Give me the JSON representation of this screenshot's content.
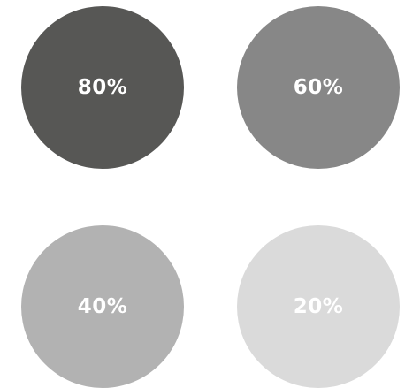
{
  "swatches": [
    {
      "label": "80%",
      "color": "#575755"
    },
    {
      "label": "60%",
      "color": "#878787"
    },
    {
      "label": "40%",
      "color": "#b2b2b2"
    },
    {
      "label": "20%",
      "color": "#dadada"
    }
  ]
}
